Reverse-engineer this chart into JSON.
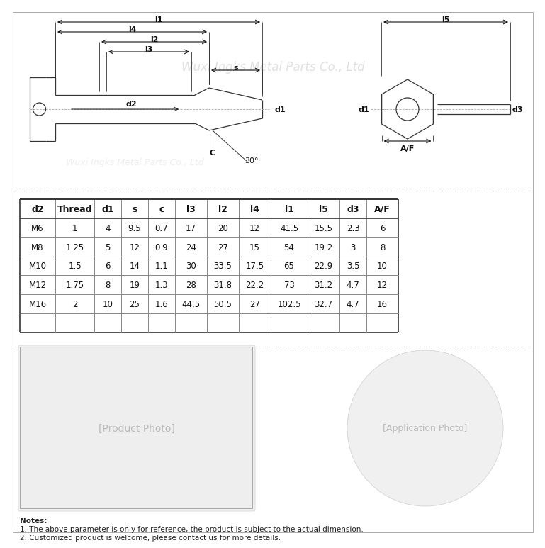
{
  "bg_color": "#ffffff",
  "table_headers": [
    "d2",
    "Thread",
    "d1",
    "s",
    "c",
    "l3",
    "l2",
    "l4",
    "l1",
    "l5",
    "d3",
    "A/F"
  ],
  "table_rows": [
    [
      "M6",
      "1",
      "4",
      "9.5",
      "0.7",
      "17",
      "20",
      "12",
      "41.5",
      "15.5",
      "2.3",
      "6"
    ],
    [
      "M8",
      "1.25",
      "5",
      "12",
      "0.9",
      "24",
      "27",
      "15",
      "54",
      "19.2",
      "3",
      "8"
    ],
    [
      "M10",
      "1.5",
      "6",
      "14",
      "1.1",
      "30",
      "33.5",
      "17.5",
      "65",
      "22.9",
      "3.5",
      "10"
    ],
    [
      "M12",
      "1.75",
      "8",
      "19",
      "1.3",
      "28",
      "31.8",
      "22.2",
      "73",
      "31.2",
      "4.7",
      "12"
    ],
    [
      "M16",
      "2",
      "10",
      "25",
      "1.6",
      "44.5",
      "50.5",
      "27",
      "102.5",
      "32.7",
      "4.7",
      "16"
    ]
  ],
  "notes": [
    "Notes:",
    "1. The above parameter is only for reference, the product is subject to the actual dimension.",
    "2. Customized product is welcome, please contact us for more details."
  ],
  "watermark": "Wuxi Ingks Metal Parts Co., Ltd",
  "line_color": "#333333",
  "header_color": "#000000",
  "table_line_color": "#555555",
  "dim_color": "#222222"
}
